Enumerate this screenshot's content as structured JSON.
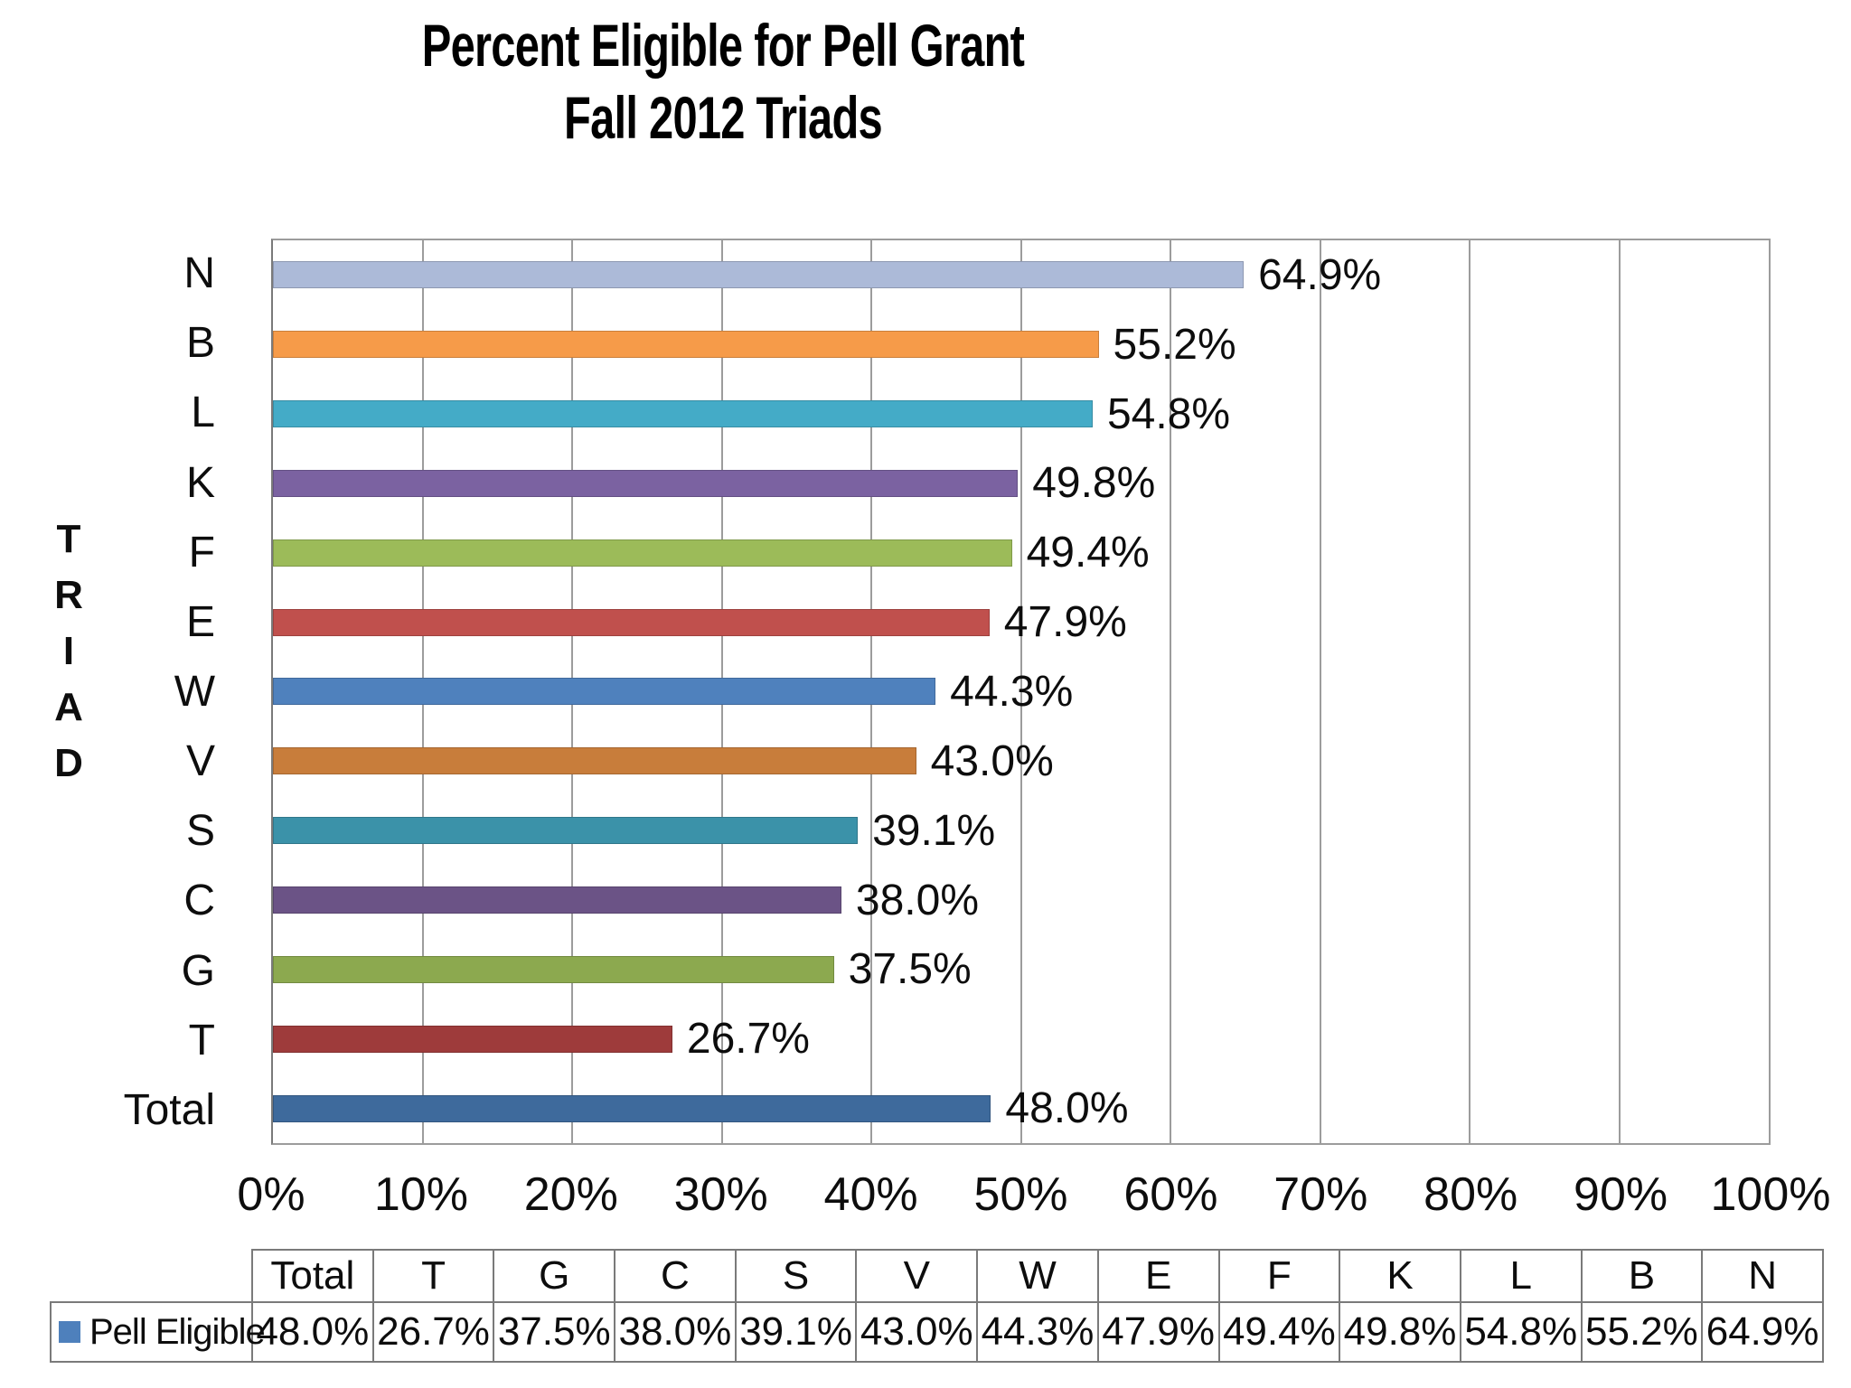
{
  "title": {
    "line1": "Percent Eligible for Pell Grant",
    "line2": "Fall 2012 Triads"
  },
  "y_axis": {
    "label": "TRIAD",
    "letters": [
      "T",
      "R",
      "I",
      "A",
      "D"
    ]
  },
  "x_axis": {
    "ticks": [
      "0%",
      "10%",
      "20%",
      "30%",
      "40%",
      "50%",
      "60%",
      "70%",
      "80%",
      "90%",
      "100%"
    ],
    "min": 0,
    "max": 100
  },
  "legend": {
    "series_label": "Pell Eligible",
    "marker_color": "#4E80BC"
  },
  "chart_data": {
    "type": "bar",
    "orientation": "horizontal",
    "title": "Percent Eligible for Pell Grant Fall 2012 Triads",
    "ylabel": "TRIAD",
    "xlabel": "",
    "xlim": [
      0,
      100
    ],
    "grid": "vertical-only",
    "legend_position": "bottom-table",
    "bars": [
      {
        "category": "N",
        "value": 64.9,
        "label": "64.9%",
        "color": "#ACBAD8"
      },
      {
        "category": "B",
        "value": 55.2,
        "label": "55.2%",
        "color": "#F69B49"
      },
      {
        "category": "L",
        "value": 54.8,
        "label": "54.8%",
        "color": "#44ABC7"
      },
      {
        "category": "K",
        "value": 49.8,
        "label": "49.8%",
        "color": "#7B62A1"
      },
      {
        "category": "F",
        "value": 49.4,
        "label": "49.4%",
        "color": "#9CBB59"
      },
      {
        "category": "E",
        "value": 47.9,
        "label": "47.9%",
        "color": "#C0504D"
      },
      {
        "category": "W",
        "value": 44.3,
        "label": "44.3%",
        "color": "#4F81BD"
      },
      {
        "category": "V",
        "value": 43.0,
        "label": "43.0%",
        "color": "#C87D3B"
      },
      {
        "category": "S",
        "value": 39.1,
        "label": "39.1%",
        "color": "#3B92A9"
      },
      {
        "category": "C",
        "value": 38.0,
        "label": "38.0%",
        "color": "#6B5386"
      },
      {
        "category": "G",
        "value": 37.5,
        "label": "37.5%",
        "color": "#8CA94F"
      },
      {
        "category": "T",
        "value": 26.7,
        "label": "26.7%",
        "color": "#9E3B3B"
      },
      {
        "category": "Total",
        "value": 48.0,
        "label": "48.0%",
        "color": "#3E6A9C"
      }
    ],
    "table": {
      "row_label": "Pell Eligible",
      "columns": [
        "Total",
        "T",
        "G",
        "C",
        "S",
        "V",
        "W",
        "E",
        "F",
        "K",
        "L",
        "B",
        "N"
      ],
      "values": [
        "48.0%",
        "26.7%",
        "37.5%",
        "38.0%",
        "39.1%",
        "43.0%",
        "44.3%",
        "47.9%",
        "49.4%",
        "49.8%",
        "54.8%",
        "55.2%",
        "64.9%"
      ]
    }
  },
  "colors": {
    "background": "#FFFFFF",
    "gridline": "#9C9C9C",
    "axis_line": "#7A7A7A",
    "table_border": "#7A7A7A",
    "text": "#0D0D0D"
  }
}
